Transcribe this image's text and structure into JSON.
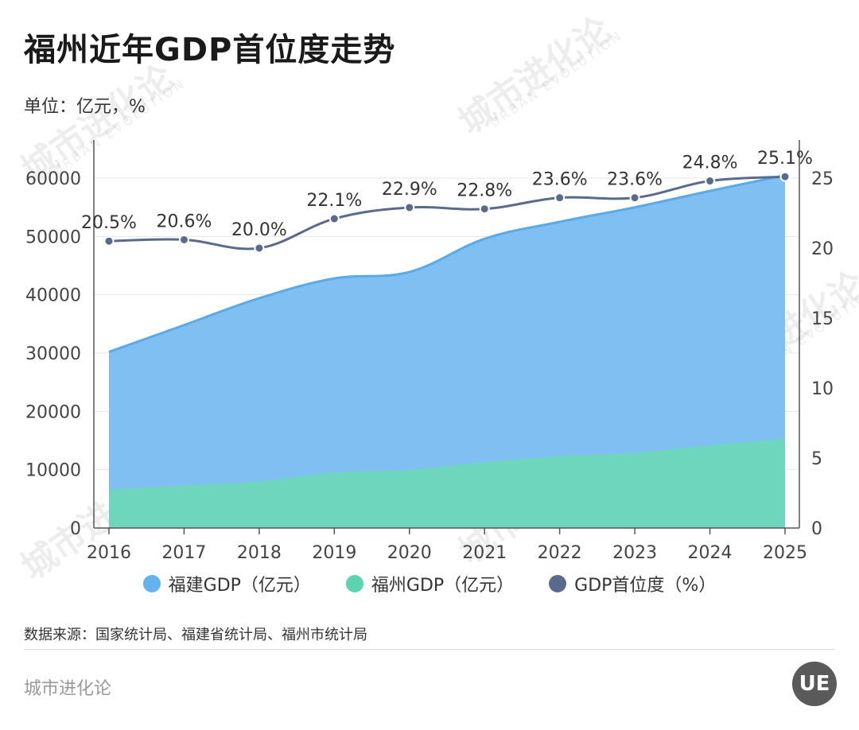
{
  "title": "福州近年GDP首位度走势",
  "subtitle": "单位：亿元，%",
  "source": "数据来源：国家统计局、福建省统计局、福州市统计局",
  "brand": "城市进化论",
  "logo_text": "UE",
  "watermark_text": "城市进化论",
  "watermark_sub": "URBAN EVOLUTION",
  "colors": {
    "fujian_fill": "#7fbff2",
    "fujian_line": "#5aaaea",
    "fuzhou_fill": "#6ed6bd",
    "ratio_line": "#5a6a8c"
  },
  "legend": [
    {
      "label": "福建GDP（亿元）",
      "color": "#62b3f0"
    },
    {
      "label": "福州GDP（亿元）",
      "color": "#5dd4b0"
    },
    {
      "label": "GDP首位度（%）",
      "color": "#5a6a8c"
    }
  ],
  "chart_data": {
    "type": "area",
    "categories": [
      "2016",
      "2017",
      "2018",
      "2019",
      "2020",
      "2021",
      "2022",
      "2023",
      "2024",
      "2025"
    ],
    "series": [
      {
        "name": "福建GDP（亿元）",
        "type": "area",
        "axis": "left",
        "values": [
          30200,
          34800,
          39400,
          42800,
          43900,
          49600,
          52500,
          55000,
          57800,
          60500
        ]
      },
      {
        "name": "福州GDP（亿元）",
        "type": "area",
        "axis": "left",
        "values": [
          6600,
          7300,
          8000,
          9500,
          10000,
          11300,
          12300,
          12900,
          14200,
          15300
        ]
      },
      {
        "name": "GDP首位度（%）",
        "type": "line",
        "axis": "right",
        "values": [
          20.5,
          20.6,
          20.0,
          22.1,
          22.9,
          22.8,
          23.6,
          23.6,
          24.8,
          25.1
        ],
        "labels": [
          "20.5%",
          "20.6%",
          "20.0%",
          "22.1%",
          "22.9%",
          "22.8%",
          "23.6%",
          "23.6%",
          "24.8%",
          "25.1%"
        ]
      }
    ],
    "y_left": {
      "min": 0,
      "max": 60000,
      "ticks": [
        0,
        10000,
        20000,
        30000,
        40000,
        50000,
        60000
      ]
    },
    "y_right": {
      "min": 0,
      "max": 25,
      "ticks": [
        0,
        5,
        10,
        15,
        20,
        25
      ]
    },
    "grid": true,
    "legend_position": "bottom"
  }
}
